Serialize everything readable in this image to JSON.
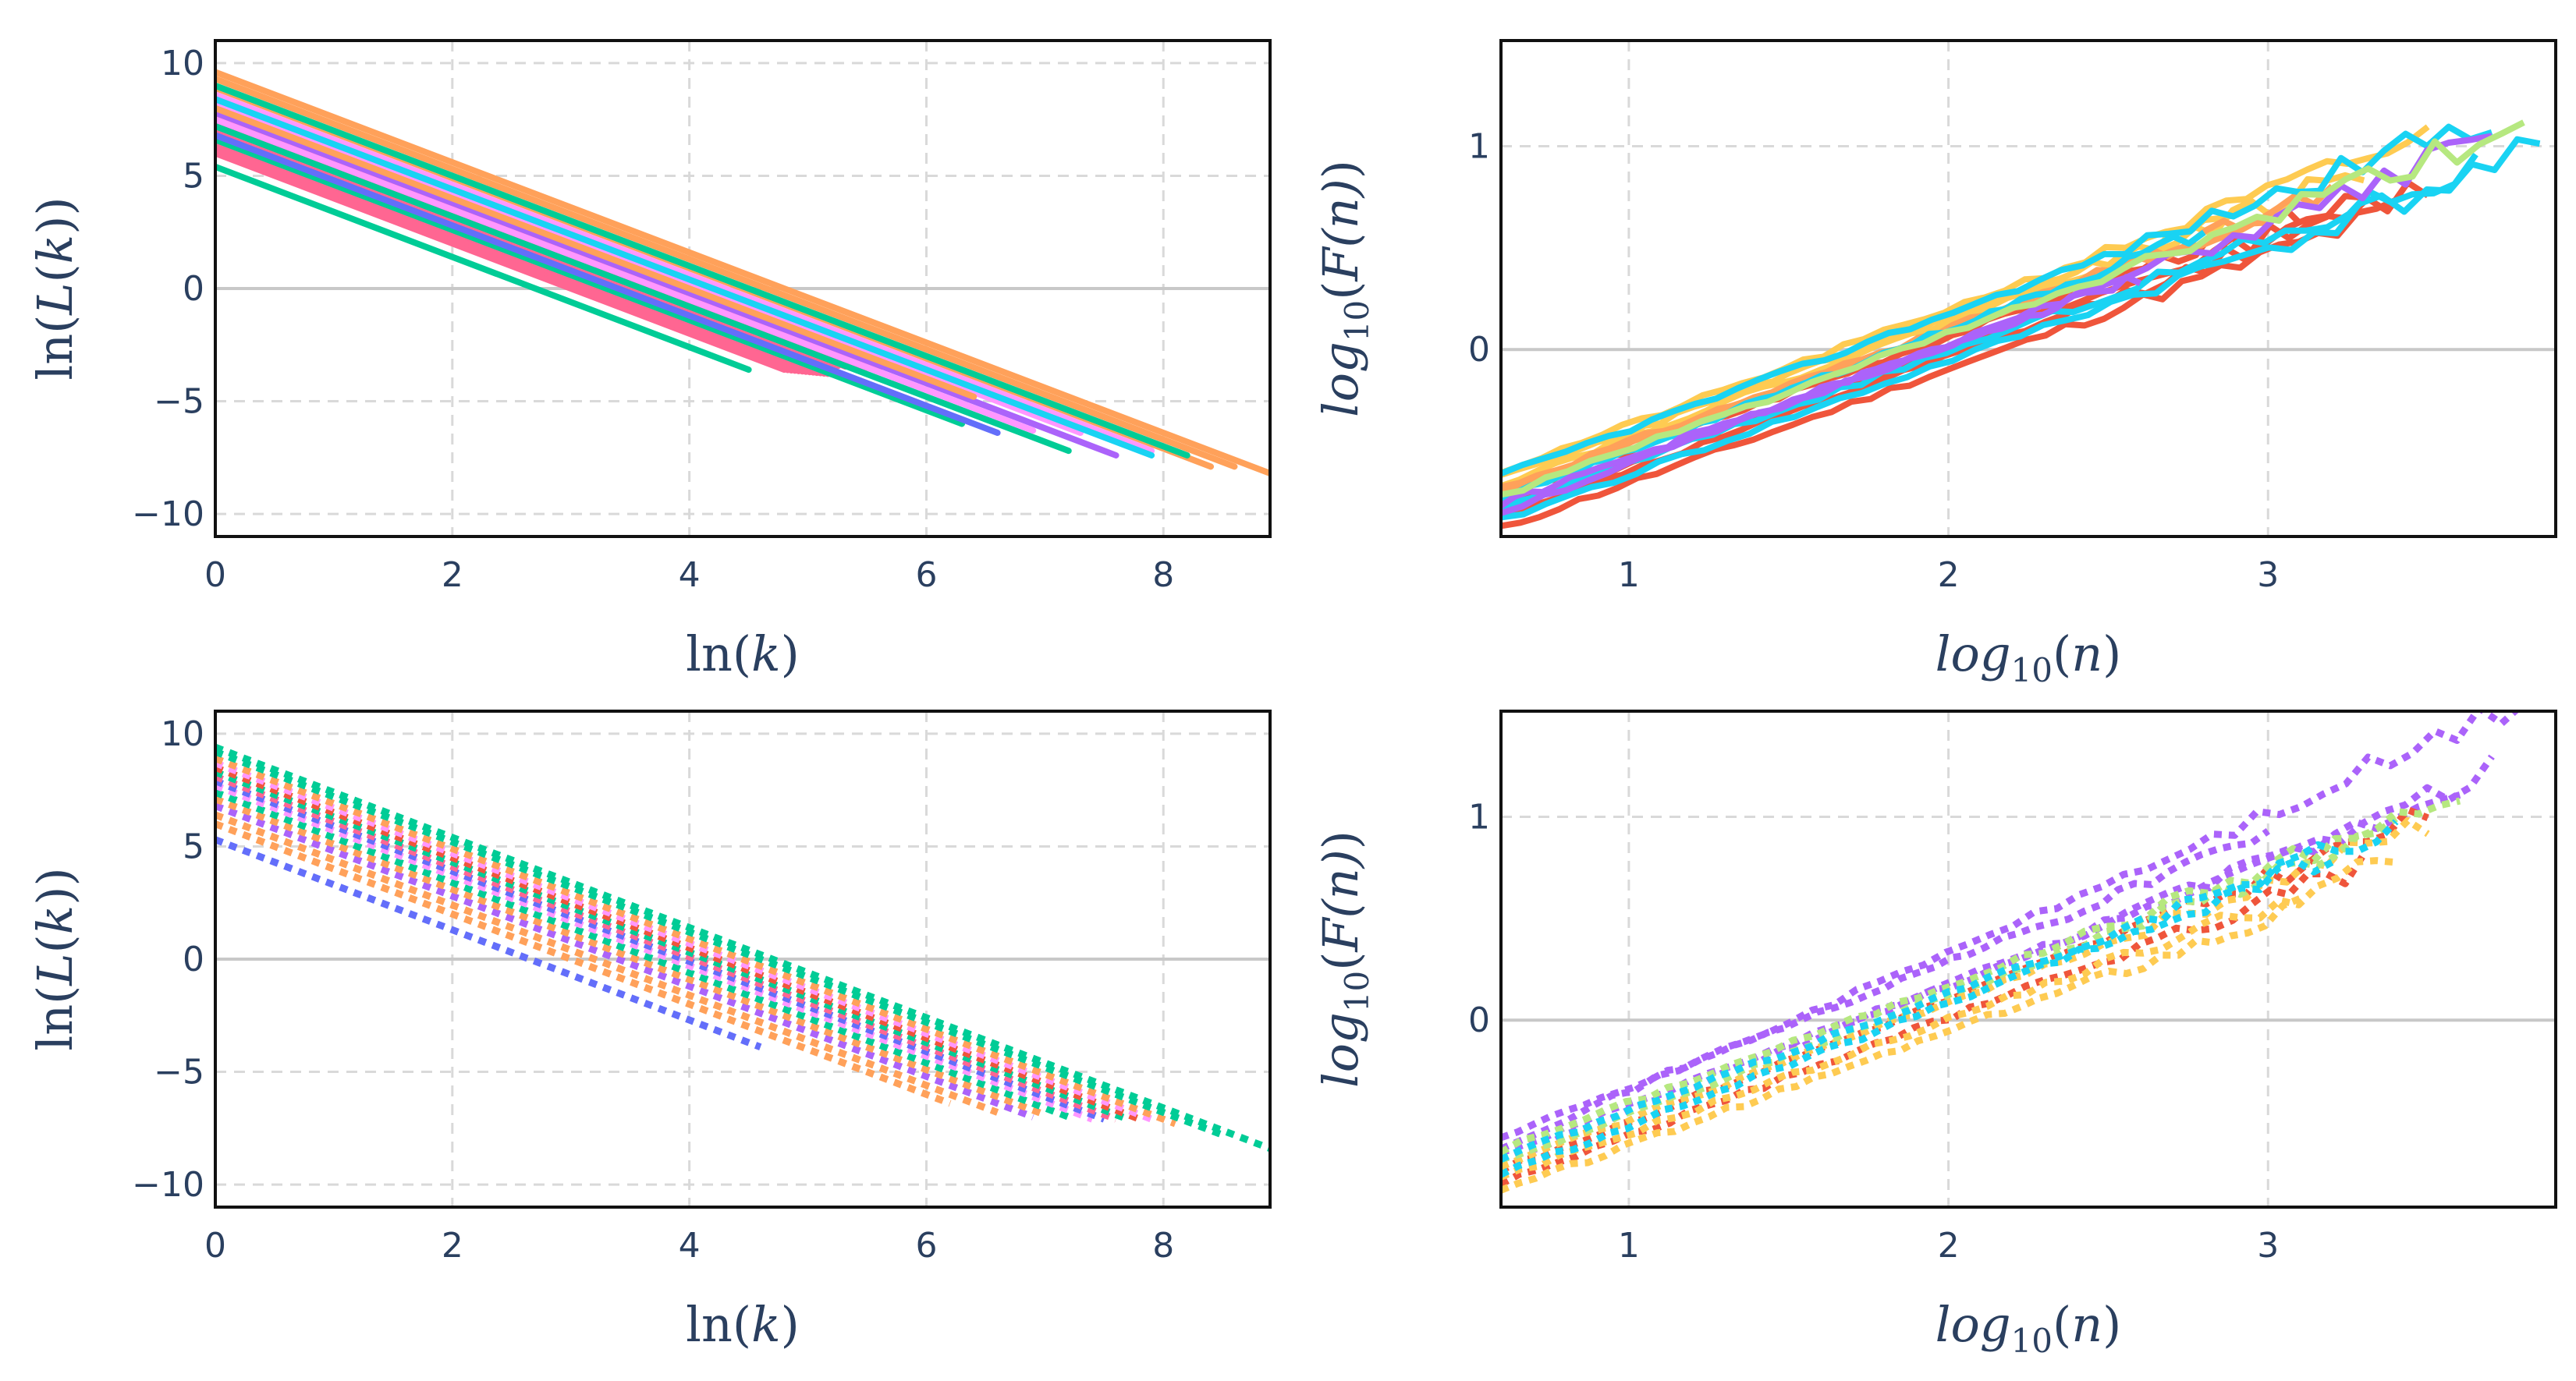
{
  "figure": {
    "grid_color": "#d9d9d9",
    "zero_line_color": "#c8c8c8",
    "frame_color": "#111111",
    "tick_color": "#2a3f5f"
  },
  "chart_data": [
    {
      "id": "top-left",
      "type": "line",
      "line_style": "solid",
      "xlabel": {
        "pre": "ln(",
        "var": "k",
        "post": ")"
      },
      "ylabel": {
        "pre": "ln(",
        "var": "L",
        "mid": "(",
        "var2": "k",
        "post": "))"
      },
      "xlim": [
        0,
        8.9
      ],
      "ylim": [
        -11,
        11
      ],
      "xticks": [
        0,
        2,
        4,
        6,
        8
      ],
      "yticks": [
        -10,
        -5,
        0,
        5,
        10
      ],
      "xtick_labels": [
        "0",
        "2",
        "4",
        "6",
        "8"
      ],
      "ytick_labels": [
        "−10",
        "−5",
        "0",
        "5",
        "10"
      ],
      "slope": -2.0,
      "series": [
        {
          "color": "#FF6692",
          "intercept": 6.0,
          "x_end": 4.8,
          "count": 14,
          "spread": 0.6
        },
        {
          "color": "#FF6692",
          "intercept": 7.0,
          "x_end": 5.2,
          "count": 8,
          "spread": 0.6
        },
        {
          "color": "#00CC96",
          "intercept": 5.4,
          "x_end": 4.5
        },
        {
          "color": "#00CC96",
          "intercept": 6.6,
          "x_end": 6.3
        },
        {
          "color": "#00CC96",
          "intercept": 7.2,
          "x_end": 7.2
        },
        {
          "color": "#636EFA",
          "intercept": 6.8,
          "x_end": 6.6
        },
        {
          "color": "#AB63FA",
          "intercept": 7.8,
          "x_end": 7.6
        },
        {
          "color": "#FF97FF",
          "intercept": 8.2,
          "x_end": 7.3
        },
        {
          "color": "#FF97FF",
          "intercept": 8.6,
          "x_end": 7.9
        },
        {
          "color": "#FF97FF",
          "intercept": 7.5,
          "x_end": 6.9
        },
        {
          "color": "#FFA15A",
          "intercept": 8.9,
          "x_end": 8.4
        },
        {
          "color": "#FFA15A",
          "intercept": 9.3,
          "x_end": 8.6
        },
        {
          "color": "#FFA15A",
          "intercept": 9.6,
          "x_end": 8.9
        },
        {
          "color": "#FFA15A",
          "intercept": 8.0,
          "x_end": 6.4
        },
        {
          "color": "#19D3F3",
          "intercept": 8.4,
          "x_end": 7.9
        },
        {
          "color": "#00CC96",
          "intercept": 9.0,
          "x_end": 8.2
        }
      ]
    },
    {
      "id": "top-right",
      "type": "line",
      "line_style": "solid",
      "xlabel": {
        "fn": "log",
        "sub": "10",
        "arg": "n"
      },
      "ylabel": {
        "fn": "log",
        "sub": "10",
        "arg": "F(n)"
      },
      "xlim": [
        0.6,
        3.9
      ],
      "ylim": [
        -0.92,
        1.52
      ],
      "xticks": [
        1,
        2,
        3
      ],
      "yticks": [
        0,
        1
      ],
      "xtick_labels": [
        "1",
        "2",
        "3"
      ],
      "ytick_labels": [
        "0",
        "1"
      ],
      "series": [
        {
          "color": "#EF553B",
          "x0": 0.6,
          "x1": 3.4,
          "y0": -0.88,
          "slope": 0.56,
          "seed": 11
        },
        {
          "color": "#EF553B",
          "x0": 0.6,
          "x1": 3.5,
          "y0": -0.82,
          "slope": 0.56,
          "seed": 12
        },
        {
          "color": "#EF553B",
          "x0": 0.6,
          "x1": 3.3,
          "y0": -0.78,
          "slope": 0.56,
          "seed": 13
        },
        {
          "color": "#EF553B",
          "x0": 0.6,
          "x1": 3.1,
          "y0": -0.72,
          "slope": 0.56,
          "seed": 14
        },
        {
          "color": "#FECB52",
          "x0": 0.6,
          "x1": 3.5,
          "y0": -0.6,
          "slope": 0.57,
          "seed": 21
        },
        {
          "color": "#FECB52",
          "x0": 0.6,
          "x1": 3.3,
          "y0": -0.66,
          "slope": 0.57,
          "seed": 22
        },
        {
          "color": "#FECB52",
          "x0": 0.6,
          "x1": 2.9,
          "y0": -0.63,
          "slope": 0.56,
          "seed": 23
        },
        {
          "color": "#FFA15A",
          "x0": 0.6,
          "x1": 3.2,
          "y0": -0.68,
          "slope": 0.56,
          "seed": 31
        },
        {
          "color": "#FFA15A",
          "x0": 0.6,
          "x1": 3.0,
          "y0": -0.7,
          "slope": 0.57,
          "seed": 32
        },
        {
          "color": "#19D3F3",
          "x0": 0.6,
          "x1": 3.85,
          "y0": -0.84,
          "slope": 0.56,
          "seed": 41
        },
        {
          "color": "#19D3F3",
          "x0": 0.6,
          "x1": 3.7,
          "y0": -0.62,
          "slope": 0.57,
          "seed": 42
        },
        {
          "color": "#19D3F3",
          "x0": 0.6,
          "x1": 2.8,
          "y0": -0.74,
          "slope": 0.6,
          "seed": 43
        },
        {
          "color": "#19D3F3",
          "x0": 0.6,
          "x1": 3.65,
          "y0": -0.78,
          "slope": 0.55,
          "seed": 44
        },
        {
          "color": "#AB63FA",
          "x0": 0.6,
          "x1": 3.7,
          "y0": -0.8,
          "slope": 0.59,
          "seed": 51
        },
        {
          "color": "#AB63FA",
          "x0": 0.6,
          "x1": 2.6,
          "y0": -0.76,
          "slope": 0.56,
          "seed": 52
        },
        {
          "color": "#B6E880",
          "x0": 0.6,
          "x1": 3.8,
          "y0": -0.72,
          "slope": 0.57,
          "seed": 61
        }
      ]
    },
    {
      "id": "bottom-left",
      "type": "line",
      "line_style": "dotted",
      "xlabel": {
        "pre": "ln(",
        "var": "k",
        "post": ")"
      },
      "ylabel": {
        "pre": "ln(",
        "var": "L",
        "mid": "(",
        "var2": "k",
        "post": "))"
      },
      "xlim": [
        0,
        8.9
      ],
      "ylim": [
        -11,
        11
      ],
      "xticks": [
        0,
        2,
        4,
        6,
        8
      ],
      "yticks": [
        -10,
        -5,
        0,
        5,
        10
      ],
      "xtick_labels": [
        "0",
        "2",
        "4",
        "6",
        "8"
      ],
      "ytick_labels": [
        "−10",
        "−5",
        "0",
        "5",
        "10"
      ],
      "slope": -2.0,
      "series": [
        {
          "color": "#636EFA",
          "intercept": 5.3,
          "x_end": 4.6
        },
        {
          "color": "#FFA15A",
          "intercept": 6.0,
          "x_end": 6.2
        },
        {
          "color": "#FFA15A",
          "intercept": 6.4,
          "x_end": 6.6
        },
        {
          "color": "#AB63FA",
          "intercept": 6.8,
          "x_end": 6.9
        },
        {
          "color": "#FFA15A",
          "intercept": 7.1,
          "x_end": 7.0
        },
        {
          "color": "#00CC96",
          "intercept": 7.4,
          "x_end": 7.2
        },
        {
          "color": "#FF97FF",
          "intercept": 7.7,
          "x_end": 7.4
        },
        {
          "color": "#636EFA",
          "intercept": 7.9,
          "x_end": 7.5
        },
        {
          "color": "#FF6692",
          "intercept": 8.1,
          "x_end": 7.6
        },
        {
          "color": "#00CC96",
          "intercept": 8.3,
          "x_end": 7.7
        },
        {
          "color": "#EF553B",
          "intercept": 8.5,
          "x_end": 7.8
        },
        {
          "color": "#FF97FF",
          "intercept": 8.7,
          "x_end": 7.9
        },
        {
          "color": "#FFA15A",
          "intercept": 8.9,
          "x_end": 8.1
        },
        {
          "color": "#00CC96",
          "intercept": 9.2,
          "x_end": 8.5
        },
        {
          "color": "#00CC96",
          "intercept": 9.4,
          "x_end": 8.9
        }
      ]
    },
    {
      "id": "bottom-right",
      "type": "line",
      "line_style": "dotted",
      "xlabel": {
        "fn": "log",
        "sub": "10",
        "arg": "n"
      },
      "ylabel": {
        "fn": "log",
        "sub": "10",
        "arg": "F(n)"
      },
      "xlim": [
        0.6,
        3.9
      ],
      "ylim": [
        -0.92,
        1.52
      ],
      "xticks": [
        1,
        2,
        3
      ],
      "yticks": [
        0,
        1
      ],
      "xtick_labels": [
        "1",
        "2",
        "3"
      ],
      "ytick_labels": [
        "0",
        "1"
      ],
      "series": [
        {
          "color": "#AB63FA",
          "x0": 0.6,
          "x1": 3.8,
          "y0": -0.62,
          "slope": 0.68,
          "seed": 71
        },
        {
          "color": "#AB63FA",
          "x0": 0.6,
          "x1": 3.7,
          "y0": -0.7,
          "slope": 0.62,
          "seed": 72
        },
        {
          "color": "#AB63FA",
          "x0": 0.6,
          "x1": 3.6,
          "y0": -0.66,
          "slope": 0.6,
          "seed": 73
        },
        {
          "color": "#AB63FA",
          "x0": 0.6,
          "x1": 3.0,
          "y0": -0.58,
          "slope": 0.62,
          "seed": 74
        },
        {
          "color": "#EF553B",
          "x0": 0.6,
          "x1": 3.5,
          "y0": -0.74,
          "slope": 0.6,
          "seed": 81
        },
        {
          "color": "#EF553B",
          "x0": 0.6,
          "x1": 3.3,
          "y0": -0.8,
          "slope": 0.58,
          "seed": 82
        },
        {
          "color": "#FECB52",
          "x0": 0.6,
          "x1": 3.4,
          "y0": -0.78,
          "slope": 0.56,
          "seed": 91
        },
        {
          "color": "#FECB52",
          "x0": 0.6,
          "x1": 3.1,
          "y0": -0.84,
          "slope": 0.56,
          "seed": 92
        },
        {
          "color": "#FECB52",
          "x0": 0.6,
          "x1": 3.5,
          "y0": -0.72,
          "slope": 0.58,
          "seed": 93
        },
        {
          "color": "#B6E880",
          "x0": 0.6,
          "x1": 3.6,
          "y0": -0.64,
          "slope": 0.58,
          "seed": 101
        },
        {
          "color": "#B6E880",
          "x0": 0.6,
          "x1": 3.4,
          "y0": -0.7,
          "slope": 0.59,
          "seed": 102
        },
        {
          "color": "#19D3F3",
          "x0": 0.6,
          "x1": 3.2,
          "y0": -0.76,
          "slope": 0.6,
          "seed": 111
        },
        {
          "color": "#19D3F3",
          "x0": 0.6,
          "x1": 3.4,
          "y0": -0.68,
          "slope": 0.58,
          "seed": 112
        }
      ]
    }
  ]
}
